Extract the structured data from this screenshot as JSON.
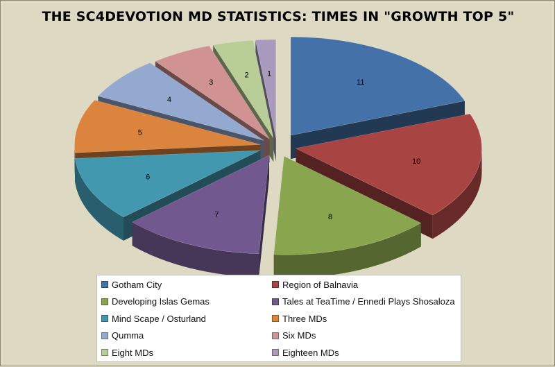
{
  "chart_data": {
    "type": "pie",
    "title": "THE SC4DEVOTION MD STATISTICS: TIMES IN \"GROWTH TOP 5\"",
    "categories": [
      "Gotham City",
      "Region of Balnavia",
      "Developing Islas Gemas",
      "Tales at TeaTime / Ennedi Plays Shosaloza",
      "Mind Scape / Osturland",
      "Three MDs",
      "Qumma",
      "Six MDs",
      "Eight MDs",
      "Eighteen MDs"
    ],
    "values": [
      11,
      10,
      8,
      7,
      6,
      5,
      4,
      3,
      2,
      1
    ],
    "data_labels": [
      "11",
      "10",
      "8",
      "7",
      "6",
      "5",
      "4",
      "3",
      "2",
      "1"
    ],
    "colors": [
      "#4472a8",
      "#a84442",
      "#89a54e",
      "#71588f",
      "#4198af",
      "#db843d",
      "#93a9cf",
      "#d19392",
      "#b9cd96",
      "#a99bbd"
    ],
    "style": "3d-exploded",
    "legend_position": "bottom"
  }
}
